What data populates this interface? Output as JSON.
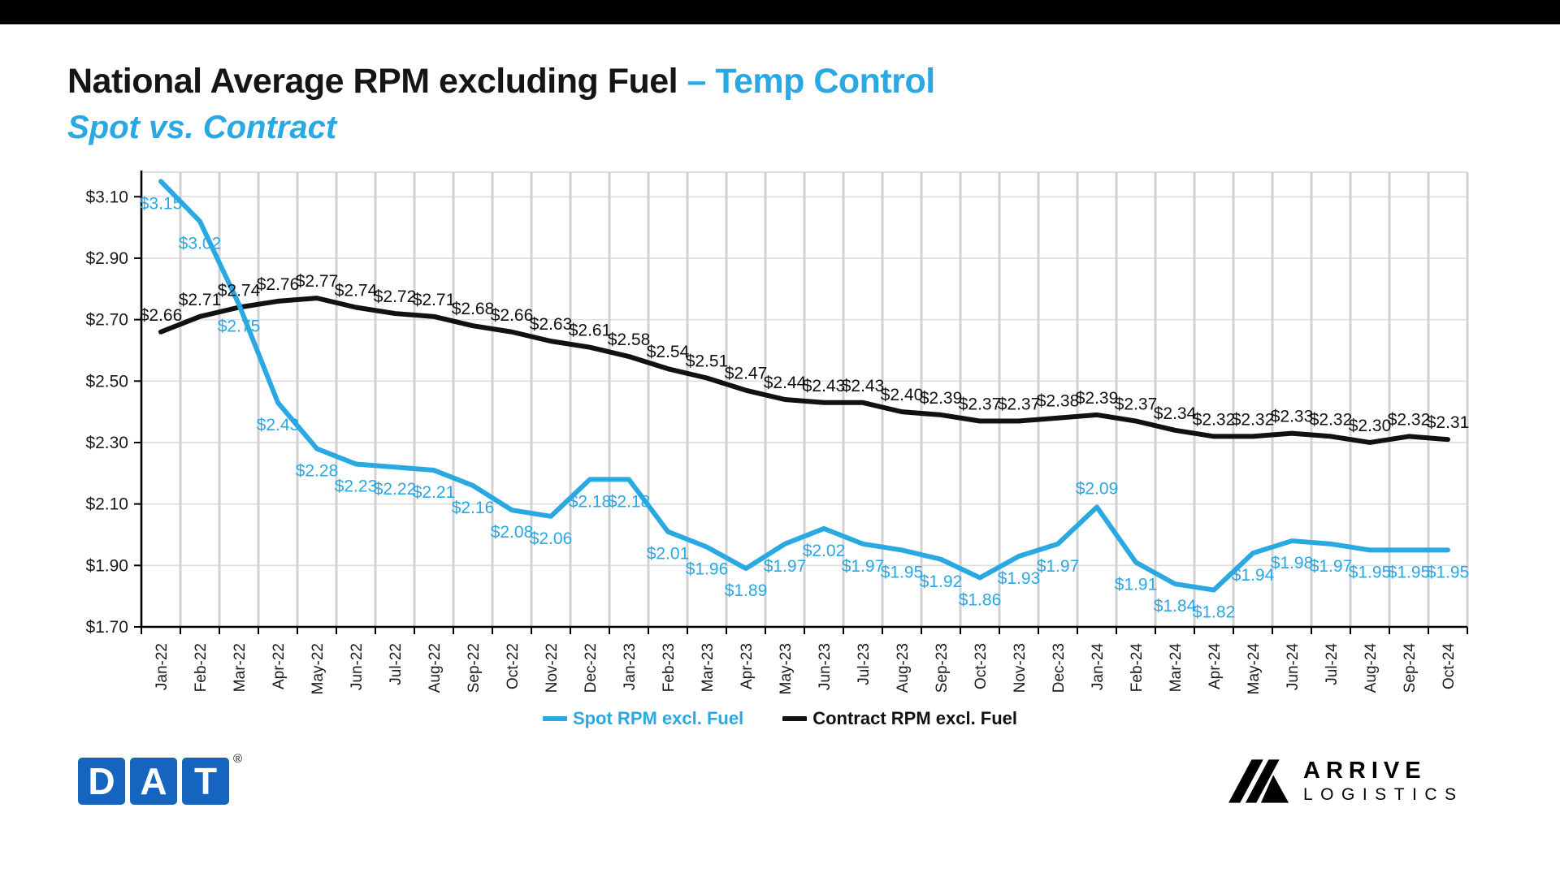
{
  "page": {
    "background": "#ffffff",
    "top_bar_color": "#000000"
  },
  "header": {
    "title_main": "National Average RPM excluding Fuel ",
    "title_accent": "– Temp Control",
    "subtitle": "Spot vs. Contract",
    "accent_color": "#29a8e1"
  },
  "chart_data": {
    "type": "line",
    "title": "National Average RPM excluding Fuel – Temp Control, Spot vs. Contract",
    "categories": [
      "Jan-22",
      "Feb-22",
      "Mar-22",
      "Apr-22",
      "May-22",
      "Jun-22",
      "Jul-22",
      "Aug-22",
      "Sep-22",
      "Oct-22",
      "Nov-22",
      "Dec-22",
      "Jan-23",
      "Feb-23",
      "Mar-23",
      "Apr-23",
      "May-23",
      "Jun-23",
      "Jul-23",
      "Aug-23",
      "Sep-23",
      "Oct-23",
      "Nov-23",
      "Dec-23",
      "Jan-24",
      "Feb-24",
      "Mar-24",
      "Apr-24",
      "May-24",
      "Jun-24",
      "Jul-24",
      "Aug-24",
      "Sep-24",
      "Oct-24"
    ],
    "series": [
      {
        "name": "Contract RPM excl. Fuel",
        "color": "#111111",
        "values": [
          2.66,
          2.71,
          2.74,
          2.76,
          2.77,
          2.74,
          2.72,
          2.71,
          2.68,
          2.66,
          2.63,
          2.61,
          2.58,
          2.54,
          2.51,
          2.47,
          2.44,
          2.43,
          2.43,
          2.4,
          2.39,
          2.37,
          2.37,
          2.38,
          2.39,
          2.37,
          2.34,
          2.32,
          2.32,
          2.33,
          2.32,
          2.3,
          2.32,
          2.31
        ]
      },
      {
        "name": "Spot RPM excl. Fuel",
        "color": "#29a8e1",
        "values": [
          3.15,
          3.02,
          2.75,
          2.43,
          2.28,
          2.23,
          2.22,
          2.21,
          2.16,
          2.08,
          2.06,
          2.18,
          2.18,
          2.01,
          1.96,
          1.89,
          1.97,
          2.02,
          1.97,
          1.95,
          1.92,
          1.86,
          1.93,
          1.97,
          2.09,
          1.91,
          1.84,
          1.82,
          1.94,
          1.98,
          1.97,
          1.95,
          1.95,
          1.95
        ]
      }
    ],
    "yticks": [
      "$1.70",
      "$1.90",
      "$2.10",
      "$2.30",
      "$2.50",
      "$2.70",
      "$2.90",
      "$3.10"
    ],
    "ytick_values": [
      1.7,
      1.9,
      2.1,
      2.3,
      2.5,
      2.7,
      2.9,
      3.1
    ],
    "ylim": [
      1.7,
      3.18
    ],
    "grid": true,
    "data_labels": true,
    "label_prefix": "$",
    "legend_position": "bottom"
  },
  "footer": {
    "dat_logo": {
      "letter_d": "D",
      "letter_a": "A",
      "letter_t": "T",
      "registered": "®",
      "color": "#1565c0"
    },
    "arrive_logo": {
      "line1": "ARRIVE",
      "line2": "LOGISTICS"
    }
  }
}
